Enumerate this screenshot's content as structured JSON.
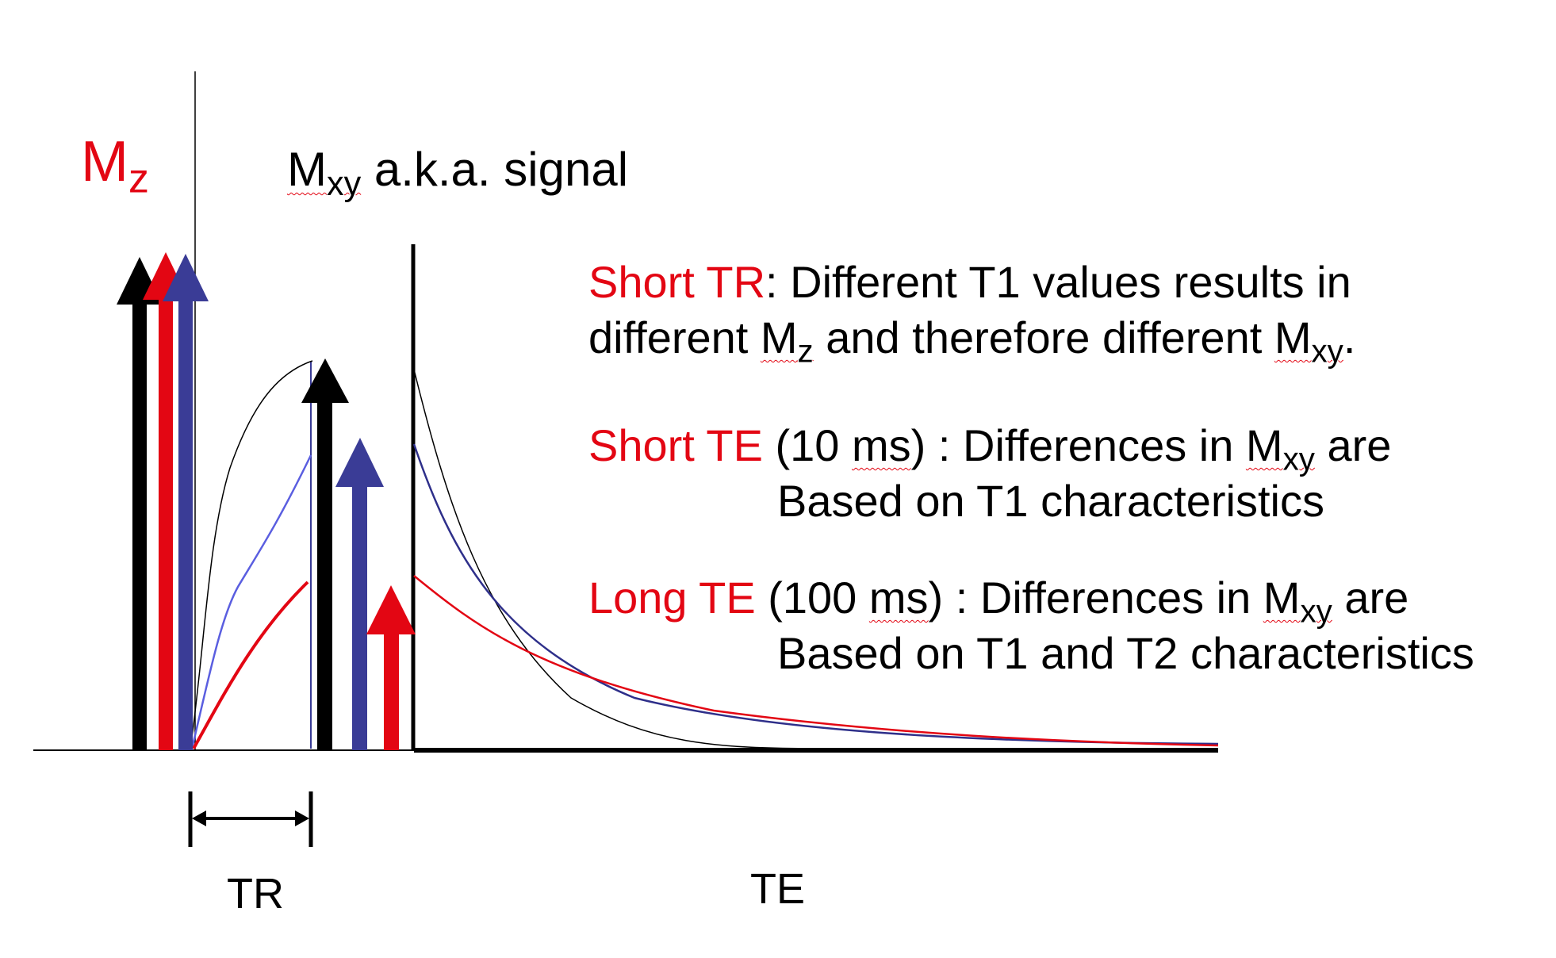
{
  "labels": {
    "mz_main": "M",
    "mz_sub": "z",
    "mxy_main": "M",
    "mxy_sub": "xy",
    "mxy_rest": " a.k.a. signal",
    "tr": "TR",
    "te": "TE"
  },
  "text_block": {
    "short_tr": {
      "lead": "Short TR",
      "l1_rest": ":  Different T1 values results in",
      "l2_a": "different ",
      "l2_m": "M",
      "l2_sub": "z",
      "l2_b": " and therefore different ",
      "l2_m2": "M",
      "l2_sub2": "xy",
      "l2_end": "."
    },
    "short_te": {
      "lead": "Short TE",
      "paren_a": " (10 ",
      "ms": "ms",
      "paren_b": ") :  Differences in ",
      "m": "M",
      "sub": "xy",
      "end": " are",
      "line2": "Based on T1 characteristics"
    },
    "long_te": {
      "lead": "Long TE",
      "paren_a": " (100 ",
      "ms": "ms",
      "paren_b": ") :  Differences in ",
      "m": "M",
      "sub": "xy",
      "end": " are",
      "line2": "Based on T1 and T2 characteristics"
    }
  },
  "colors": {
    "red": "#e30613",
    "blue": "#3a3c96",
    "black": "#000000"
  }
}
